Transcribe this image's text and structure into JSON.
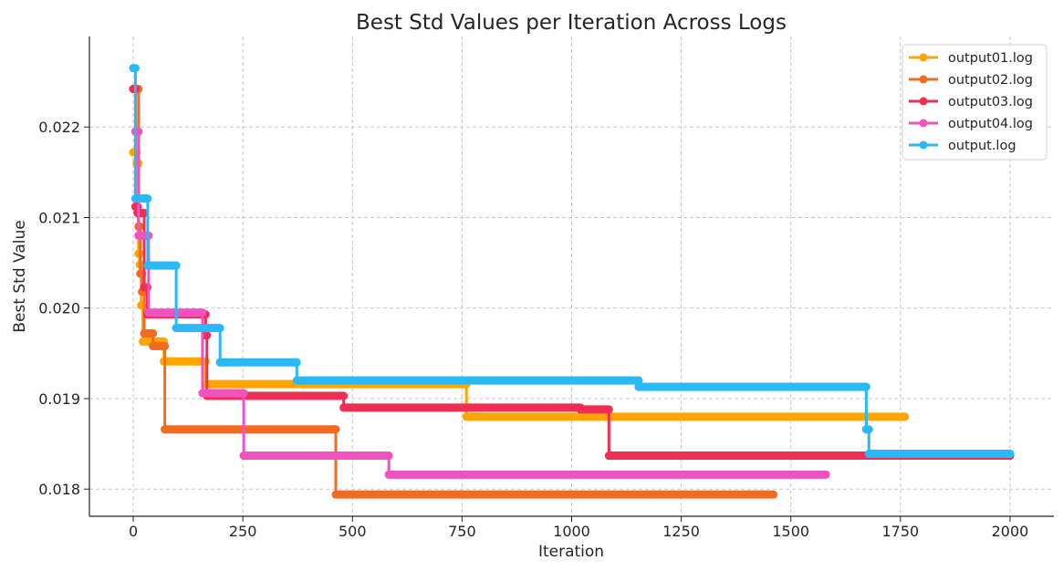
{
  "chart_data": {
    "type": "line",
    "title": "Best Std Values per Iteration Across Logs",
    "xlabel": "Iteration",
    "ylabel": "Best Std Value",
    "xlim": [
      -100,
      2100
    ],
    "ylim": [
      0.0177,
      0.023
    ],
    "xticks": [
      0,
      250,
      500,
      750,
      1000,
      1250,
      1500,
      1750,
      2000
    ],
    "xtick_labels": [
      "0",
      "250",
      "500",
      "750",
      "1000",
      "1250",
      "1500",
      "1750",
      "2000"
    ],
    "yticks": [
      0.018,
      0.019,
      0.02,
      0.021,
      0.022
    ],
    "ytick_labels": [
      "0.018",
      "0.019",
      "0.020",
      "0.021",
      "0.022"
    ],
    "grid": true,
    "legend_position": "top-right",
    "series": [
      {
        "name": "output01.log",
        "color": "#ffa500",
        "points": [
          [
            0,
            0.02172
          ],
          [
            8,
            0.0216
          ],
          [
            12,
            0.0206
          ],
          [
            15,
            0.02048
          ],
          [
            18,
            0.02003
          ],
          [
            22,
            0.01963
          ],
          [
            70,
            0.01941
          ],
          [
            165,
            0.01916
          ],
          [
            760,
            0.0188
          ],
          [
            1760,
            0.0188
          ]
        ]
      },
      {
        "name": "output02.log",
        "color": "#f26b21",
        "points": [
          [
            0,
            0.02242
          ],
          [
            12,
            0.0209
          ],
          [
            16,
            0.02038
          ],
          [
            20,
            0.02018
          ],
          [
            25,
            0.01972
          ],
          [
            45,
            0.01958
          ],
          [
            72,
            0.01866
          ],
          [
            460,
            0.01866
          ],
          [
            462,
            0.01794
          ],
          [
            1460,
            0.01794
          ]
        ]
      },
      {
        "name": "output03.log",
        "color": "#ee2e53",
        "points": [
          [
            0,
            0.02242
          ],
          [
            5,
            0.02112
          ],
          [
            10,
            0.02105
          ],
          [
            25,
            0.02023
          ],
          [
            32,
            0.01993
          ],
          [
            165,
            0.0197
          ],
          [
            168,
            0.01903
          ],
          [
            480,
            0.0189
          ],
          [
            1020,
            0.01888
          ],
          [
            1085,
            0.01837
          ],
          [
            2000,
            0.01837
          ]
        ]
      },
      {
        "name": "output04.log",
        "color": "#f052c0",
        "points": [
          [
            5,
            0.02195
          ],
          [
            12,
            0.0208
          ],
          [
            30,
            0.0208
          ],
          [
            35,
            0.01995
          ],
          [
            155,
            0.01995
          ],
          [
            158,
            0.01906
          ],
          [
            250,
            0.01906
          ],
          [
            252,
            0.01837
          ],
          [
            580,
            0.01837
          ],
          [
            583,
            0.01816
          ],
          [
            1580,
            0.01816
          ]
        ]
      },
      {
        "name": "output.log",
        "color": "#29baf5",
        "points": [
          [
            0,
            0.02265
          ],
          [
            5,
            0.02121
          ],
          [
            30,
            0.02121
          ],
          [
            33,
            0.02047
          ],
          [
            95,
            0.02047
          ],
          [
            98,
            0.01978
          ],
          [
            195,
            0.01978
          ],
          [
            198,
            0.0194
          ],
          [
            370,
            0.0194
          ],
          [
            373,
            0.0192
          ],
          [
            1150,
            0.0192
          ],
          [
            1153,
            0.01913
          ],
          [
            1670,
            0.01913
          ],
          [
            1672,
            0.01866
          ],
          [
            1678,
            0.01839
          ],
          [
            2000,
            0.01839
          ]
        ]
      }
    ]
  }
}
